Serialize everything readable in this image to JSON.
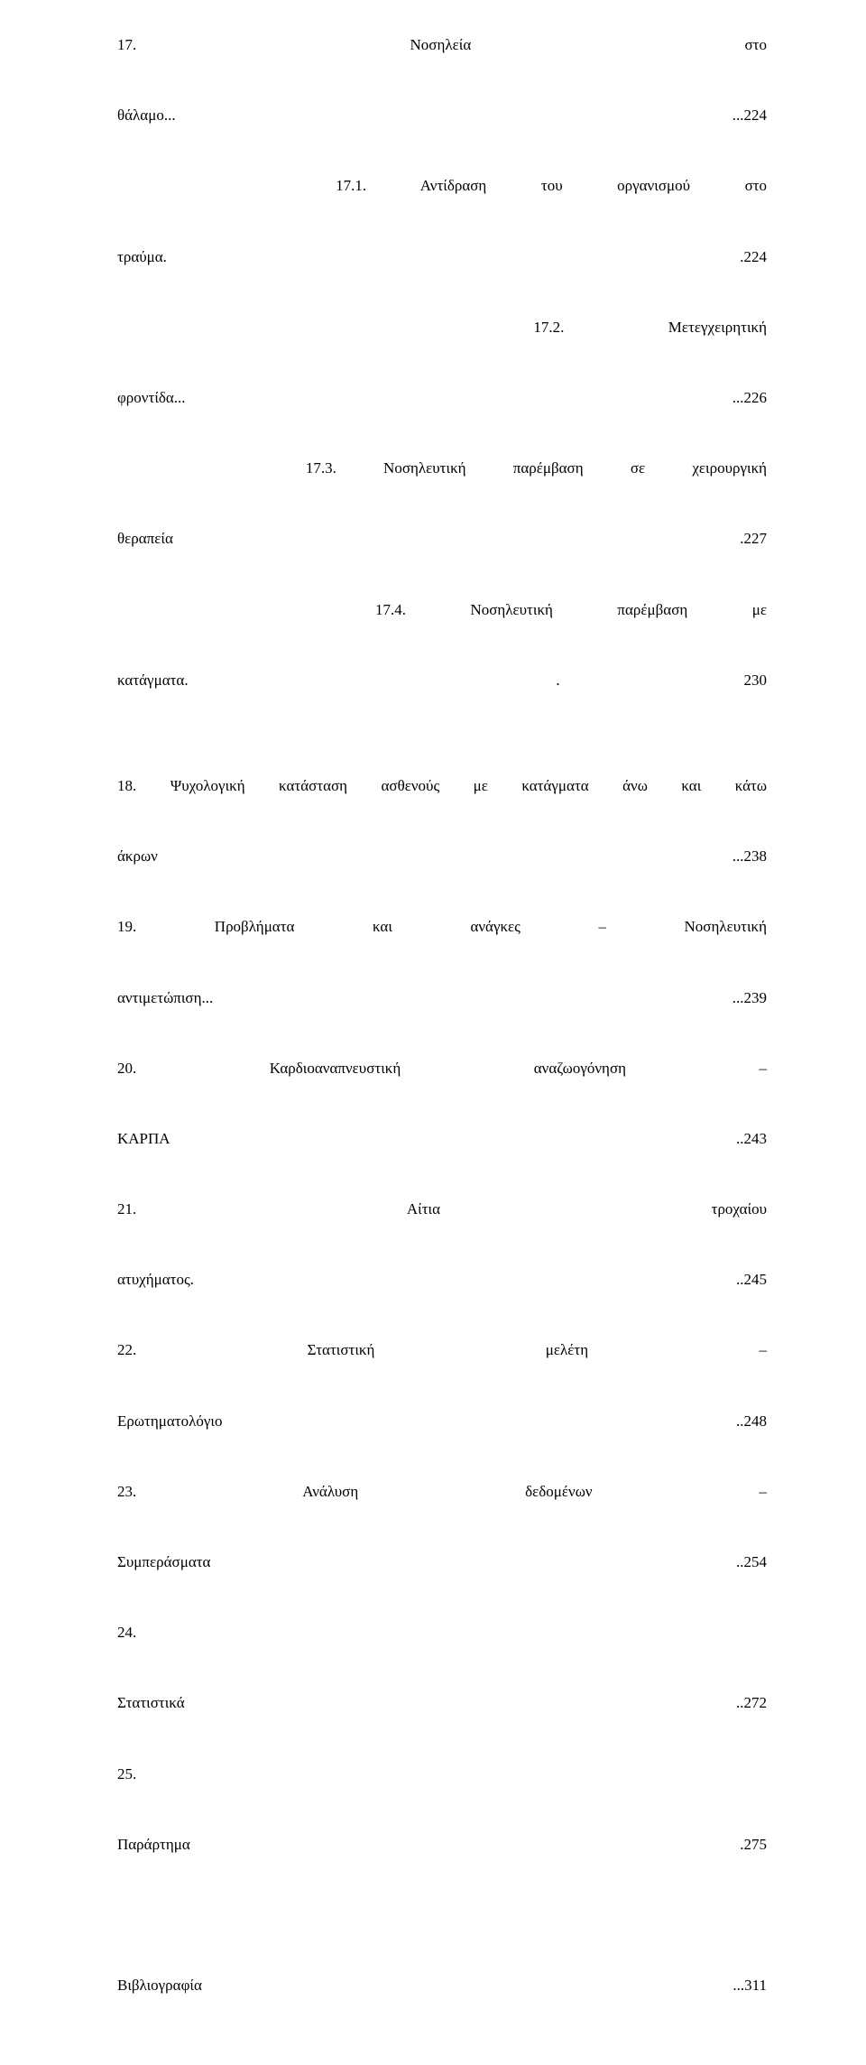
{
  "font_family": "Times New Roman",
  "font_size_pt": 17,
  "text_color": "#000000",
  "background_color": "#ffffff",
  "line_height": 2.3,
  "entries": [
    {
      "lines": [
        {
          "segments": [
            "17.",
            "Νοσηλεία",
            "στο"
          ]
        },
        {
          "segments": [
            "θάλαμο...",
            "...224"
          ],
          "leader_after": 0
        }
      ]
    },
    {
      "lines": [
        {
          "indent": 1,
          "segments": [
            "17.1.",
            "Αντίδραση",
            "του",
            "οργανισμού",
            "στο"
          ]
        },
        {
          "segments": [
            "τραύμα.",
            ".224"
          ],
          "leader_after": 0
        }
      ]
    },
    {
      "lines": [
        {
          "indent": 1,
          "segments": [
            "17.2.",
            "Μετεγχειρητική"
          ]
        },
        {
          "segments": [
            "φροντίδα...",
            "...226"
          ],
          "leader_after": 0
        }
      ]
    },
    {
      "lines": [
        {
          "indent": 1,
          "segments": [
            "17.3.",
            "Νοσηλευτική",
            "παρέμβαση",
            "σε",
            "χειρουργική"
          ]
        },
        {
          "segments": [
            "θεραπεία",
            ".227"
          ],
          "leader_after": 0
        }
      ]
    },
    {
      "lines": [
        {
          "indent": 1,
          "segments": [
            "17.4.",
            "Νοσηλευτική",
            "παρέμβαση",
            "με"
          ]
        },
        {
          "segments": [
            "κατάγματα.",
            ".",
            "230"
          ],
          "leader_after": 0
        }
      ]
    },
    {
      "blank": true
    },
    {
      "lines": [
        {
          "segments": [
            "18.",
            "Ψυχολογική",
            "κατάσταση",
            "ασθενούς",
            "με",
            "κατάγματα",
            "άνω",
            "και",
            "κάτω"
          ]
        },
        {
          "segments": [
            "άκρων",
            "...238"
          ],
          "leader_after": 0
        }
      ]
    },
    {
      "lines": [
        {
          "segments": [
            "19.",
            "Προβλήματα",
            "και",
            "ανάγκες",
            "–",
            "Νοσηλευτική"
          ]
        },
        {
          "segments": [
            "αντιμετώπιση...",
            "...239"
          ],
          "leader_after": 0
        }
      ]
    },
    {
      "lines": [
        {
          "segments": [
            "20.",
            "Καρδιοαναπνευστική",
            "αναζωογόνηση",
            "–"
          ]
        },
        {
          "segments": [
            "ΚΑΡΠΑ",
            "..243"
          ],
          "leader_after": 0
        }
      ]
    },
    {
      "lines": [
        {
          "segments": [
            "21.",
            "Αίτια",
            "τροχαίου"
          ]
        },
        {
          "segments": [
            "ατυχήματος.",
            "..245"
          ],
          "leader_after": 0
        }
      ]
    },
    {
      "lines": [
        {
          "segments": [
            "22.",
            "Στατιστική",
            "μελέτη",
            "–"
          ]
        },
        {
          "segments": [
            "Ερωτηματολόγιο",
            "..248"
          ],
          "leader_after": 0
        }
      ]
    },
    {
      "lines": [
        {
          "segments": [
            "23.",
            "Ανάλυση",
            "δεδομένων",
            "–"
          ]
        },
        {
          "segments": [
            "Συμπεράσματα",
            "..254"
          ],
          "leader_after": 0
        }
      ]
    },
    {
      "lines": [
        {
          "segments": [
            "24."
          ],
          "nojustify": true
        }
      ]
    },
    {
      "lines": [
        {
          "segments": [
            "Στατιστικά",
            "..272"
          ],
          "leader_after": 0
        }
      ]
    },
    {
      "lines": [
        {
          "segments": [
            "25."
          ],
          "nojustify": true
        }
      ]
    },
    {
      "lines": [
        {
          "segments": [
            "Παράρτημα",
            ".275"
          ],
          "leader_after": 0
        }
      ]
    },
    {
      "blank": true
    },
    {
      "blank": true
    },
    {
      "lines": [
        {
          "segments": [
            "Βιβλιογραφία",
            "...311"
          ],
          "leader_after": 0
        }
      ]
    }
  ]
}
